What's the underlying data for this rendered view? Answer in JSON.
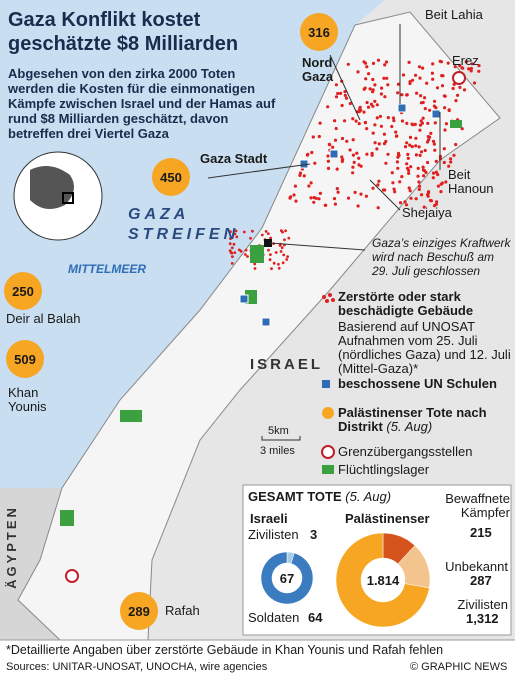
{
  "header": {
    "title": "Gaza Konflikt kostet geschätzte $8 Milliarden",
    "subtitle": "Abgesehen von den zirka 2000 Toten werden die Kosten für die einmonatigen Kämpfe zwischen Israel und der Hamas auf rund $8 Milliarden geschätzt, davon betreffen drei Viertel Gaza"
  },
  "districts": [
    {
      "deaths": "316",
      "name": "Nord Gaza"
    },
    {
      "deaths": "450",
      "name": "Gaza Stadt"
    },
    {
      "deaths": "250",
      "name": "Deir al Balah"
    },
    {
      "deaths": "509",
      "name": "Khan Younis"
    },
    {
      "deaths": "289",
      "name": "Rafah"
    }
  ],
  "places": {
    "beit_lahia": "Beit Lahia",
    "erez": "Erez",
    "beit_hanoun": "Beit Hanoun",
    "shejaiya": "Shejaiya",
    "strip": "GAZA STREIFEN",
    "sea": "MITTELMEER",
    "israel": "ISRAEL",
    "egypt": "ÄGYPTEN",
    "power_plant": "Gaza’s einziges Kraftwerk wird nach Beschuß am 29. Juli geschlossen"
  },
  "scale": {
    "km": "5km",
    "miles": "3 miles"
  },
  "legend": {
    "destroyed": "Zerstörte oder stark beschädigte Gebäude",
    "destroyed_note": "Basierend auf UNOSAT Aufnahmen vom 25. Juli (nördliches Gaza) und 12. Juli (Mittel-Gaza)*",
    "schools": "beschossene UN Schulen",
    "deaths": "Palästinenser Tote nach Distrikt",
    "deaths_date": "(5. Aug)",
    "crossings": "Grenzübergangsstellen",
    "camps": "Flüchtlingslager"
  },
  "totals": {
    "title": "GESAMT TOTE",
    "date": "(5. Aug)"
  },
  "chart_data": [
    {
      "type": "pie",
      "title": "Israeli",
      "total": "67",
      "categories": [
        "Zivilisten",
        "Soldaten"
      ],
      "values": [
        3,
        64
      ],
      "value_labels": [
        "3",
        "64"
      ],
      "colors": [
        "#a9cbe8",
        "#3b7cc0"
      ]
    },
    {
      "type": "pie",
      "title": "Palästinenser",
      "total": "1.814",
      "categories": [
        "Bewaffnete Kämpfer",
        "Unbekannt",
        "Zivilisten"
      ],
      "values": [
        215,
        287,
        1312
      ],
      "value_labels": [
        "215",
        "287",
        "1,312"
      ],
      "colors": [
        "#d4531d",
        "#f3c48e",
        "#f6a623"
      ]
    }
  ],
  "footer": {
    "note": "*Detaillierte Angaben über zerstörte Gebäude in Khan Younis und Rafah fehlen",
    "sources": "Sources: UNITAR-UNOSAT, UNOCHA, wire agencies",
    "credit": "© GRAPHIC NEWS"
  }
}
